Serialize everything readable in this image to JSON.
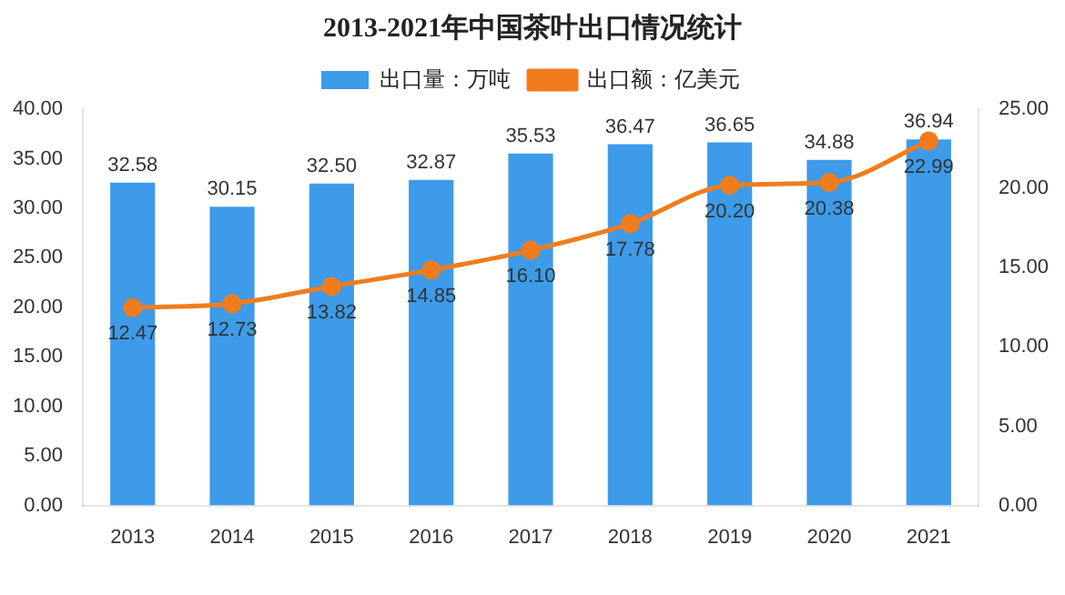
{
  "chart_data": {
    "type": "bar",
    "title": "2013-2021年中国茶叶出口情况统计",
    "categories": [
      "2013",
      "2014",
      "2015",
      "2016",
      "2017",
      "2018",
      "2019",
      "2020",
      "2021"
    ],
    "series": [
      {
        "name": "出口量：万吨",
        "color": "#3d9be9",
        "values": [
          32.58,
          30.15,
          32.5,
          32.87,
          35.53,
          36.47,
          36.65,
          34.88,
          36.94
        ],
        "value_labels": [
          "32.58",
          "30.15",
          "32.50",
          "32.87",
          "35.53",
          "36.47",
          "36.65",
          "34.88",
          "36.94"
        ]
      },
      {
        "name": "出口额：亿美元",
        "type": "line",
        "axis": "y2",
        "color": "#f07c1e",
        "values": [
          12.47,
          12.73,
          13.82,
          14.85,
          16.1,
          17.78,
          20.2,
          20.38,
          22.99
        ],
        "value_labels": [
          "12.47",
          "12.73",
          "13.82",
          "14.85",
          "16.10",
          "17.78",
          "20.20",
          "20.38",
          "22.99"
        ]
      }
    ],
    "ylim": [
      0,
      40
    ],
    "yticks": [
      {
        "value": 0,
        "label": "0.00"
      },
      {
        "value": 5,
        "label": "5.00"
      },
      {
        "value": 10,
        "label": "10.00"
      },
      {
        "value": 15,
        "label": "15.00"
      },
      {
        "value": 20,
        "label": "20.00"
      },
      {
        "value": 25,
        "label": "25.00"
      },
      {
        "value": 30,
        "label": "30.00"
      },
      {
        "value": 35,
        "label": "35.00"
      },
      {
        "value": 40,
        "label": "40.00"
      }
    ],
    "y2lim": [
      0,
      25
    ],
    "y2ticks": [
      {
        "value": 0,
        "label": "0.00"
      },
      {
        "value": 5,
        "label": "5.00"
      },
      {
        "value": 10,
        "label": "10.00"
      },
      {
        "value": 15,
        "label": "15.00"
      },
      {
        "value": 20,
        "label": "20.00"
      },
      {
        "value": 25,
        "label": "25.00"
      }
    ],
    "legend": "top",
    "marker": "circle",
    "line_style": "solid",
    "grid": false
  }
}
